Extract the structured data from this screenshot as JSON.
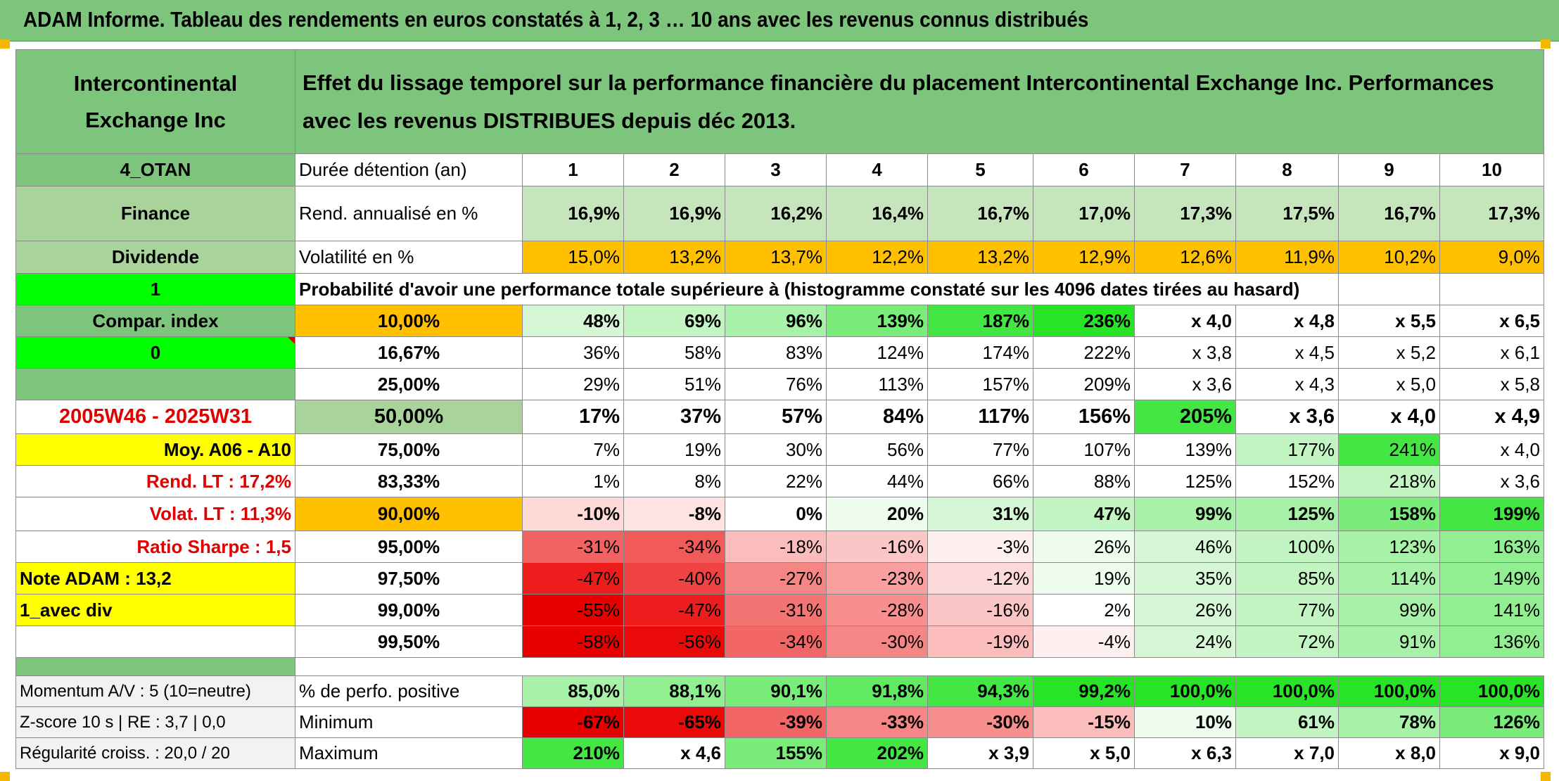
{
  "title": "ADAM Informe. Tableau des rendements en euros constatés à 1, 2, 3 … 10 ans avec les revenus connus distribués",
  "colors": {
    "header_green": "#7dc47d",
    "light_green": "#c7e5bd",
    "orange": "#ffc000",
    "yellow": "#ffff00",
    "bright_green": "#00ff00",
    "red_text": "#e00000"
  },
  "side": {
    "name": "Intercontinental Exchange Inc",
    "code": "4_OTAN",
    "sector": "Finance",
    "dividend_label": "Dividende",
    "dividend_value": "1",
    "compar_label": "Compar. index",
    "compar_value": "0",
    "period": "2005W46 - 2025W31",
    "moy": "Moy. A06 - A10",
    "rend_lt": "Rend. LT :   17,2%",
    "volat_lt": "Volat. LT :   11,3%",
    "sharpe": "Ratio Sharpe :   1,5",
    "note": "Note ADAM : 13,2",
    "avec_div": "1_avec div",
    "momentum": "Momentum A/V : 5 (10=neutre)",
    "zscore": "Z-score 10 s | RE : 3,7 | 0,0",
    "regularite": "Régularité croiss. : 20,0 / 20"
  },
  "header": {
    "description": "Effet du lissage temporel sur la performance financière du placement Intercontinental Exchange Inc. Performances avec les revenus DISTRIBUES depuis déc 2013.",
    "duree_label": "Durée détention (an)",
    "years": [
      "1",
      "2",
      "3",
      "4",
      "5",
      "6",
      "7",
      "8",
      "9",
      "10"
    ],
    "rend_label": "Rend. annualisé en %",
    "rend": [
      "16,9%",
      "16,9%",
      "16,2%",
      "16,4%",
      "16,7%",
      "17,0%",
      "17,3%",
      "17,5%",
      "16,7%",
      "17,3%"
    ],
    "vol_label": "Volatilité en %",
    "vol": [
      "15,0%",
      "13,2%",
      "13,7%",
      "12,2%",
      "13,2%",
      "12,9%",
      "12,6%",
      "11,9%",
      "10,2%",
      "9,0%"
    ],
    "prob_title": "Probabilité d'avoir une performance totale supérieure à (histogramme constaté sur les 4096 dates tirées au hasard)"
  },
  "quantiles": [
    {
      "label": "10,00%",
      "values": [
        "48%",
        "69%",
        "96%",
        "139%",
        "187%",
        "236%",
        "x 4,0",
        "x 4,8",
        "x 5,5",
        "x 6,5"
      ]
    },
    {
      "label": "16,67%",
      "values": [
        "36%",
        "58%",
        "83%",
        "124%",
        "174%",
        "222%",
        "x 3,8",
        "x 4,5",
        "x 5,2",
        "x 6,1"
      ]
    },
    {
      "label": "25,00%",
      "values": [
        "29%",
        "51%",
        "76%",
        "113%",
        "157%",
        "209%",
        "x 3,6",
        "x 4,3",
        "x 5,0",
        "x 5,8"
      ]
    },
    {
      "label": "50,00%",
      "values": [
        "17%",
        "37%",
        "57%",
        "84%",
        "117%",
        "156%",
        "205%",
        "x 3,6",
        "x 4,0",
        "x 4,9"
      ]
    },
    {
      "label": "75,00%",
      "values": [
        "7%",
        "19%",
        "30%",
        "56%",
        "77%",
        "107%",
        "139%",
        "177%",
        "241%",
        "x 4,0"
      ]
    },
    {
      "label": "83,33%",
      "values": [
        "1%",
        "8%",
        "22%",
        "44%",
        "66%",
        "88%",
        "125%",
        "152%",
        "218%",
        "x 3,6"
      ]
    },
    {
      "label": "90,00%",
      "values": [
        "-10%",
        "-8%",
        "0%",
        "20%",
        "31%",
        "47%",
        "99%",
        "125%",
        "158%",
        "199%"
      ]
    },
    {
      "label": "95,00%",
      "values": [
        "-31%",
        "-34%",
        "-18%",
        "-16%",
        "-3%",
        "26%",
        "46%",
        "100%",
        "123%",
        "163%"
      ]
    },
    {
      "label": "97,50%",
      "values": [
        "-47%",
        "-40%",
        "-27%",
        "-23%",
        "-12%",
        "19%",
        "35%",
        "85%",
        "114%",
        "149%"
      ]
    },
    {
      "label": "99,00%",
      "values": [
        "-55%",
        "-47%",
        "-31%",
        "-28%",
        "-16%",
        "2%",
        "26%",
        "77%",
        "99%",
        "141%"
      ]
    },
    {
      "label": "99,50%",
      "values": [
        "-58%",
        "-56%",
        "-34%",
        "-30%",
        "-19%",
        "-4%",
        "24%",
        "72%",
        "91%",
        "136%"
      ]
    }
  ],
  "footer": [
    {
      "label": "% de perfo. positive",
      "values": [
        "85,0%",
        "88,1%",
        "90,1%",
        "91,8%",
        "94,3%",
        "99,2%",
        "100,0%",
        "100,0%",
        "100,0%",
        "100,0%"
      ]
    },
    {
      "label": "Minimum",
      "values": [
        "-67%",
        "-65%",
        "-39%",
        "-33%",
        "-30%",
        "-15%",
        "10%",
        "61%",
        "78%",
        "126%"
      ]
    },
    {
      "label": "Maximum",
      "values": [
        "210%",
        "x 4,6",
        "155%",
        "202%",
        "x 3,9",
        "x 5,0",
        "x 6,3",
        "x 7,0",
        "x 8,0",
        "x 9,0"
      ]
    }
  ]
}
